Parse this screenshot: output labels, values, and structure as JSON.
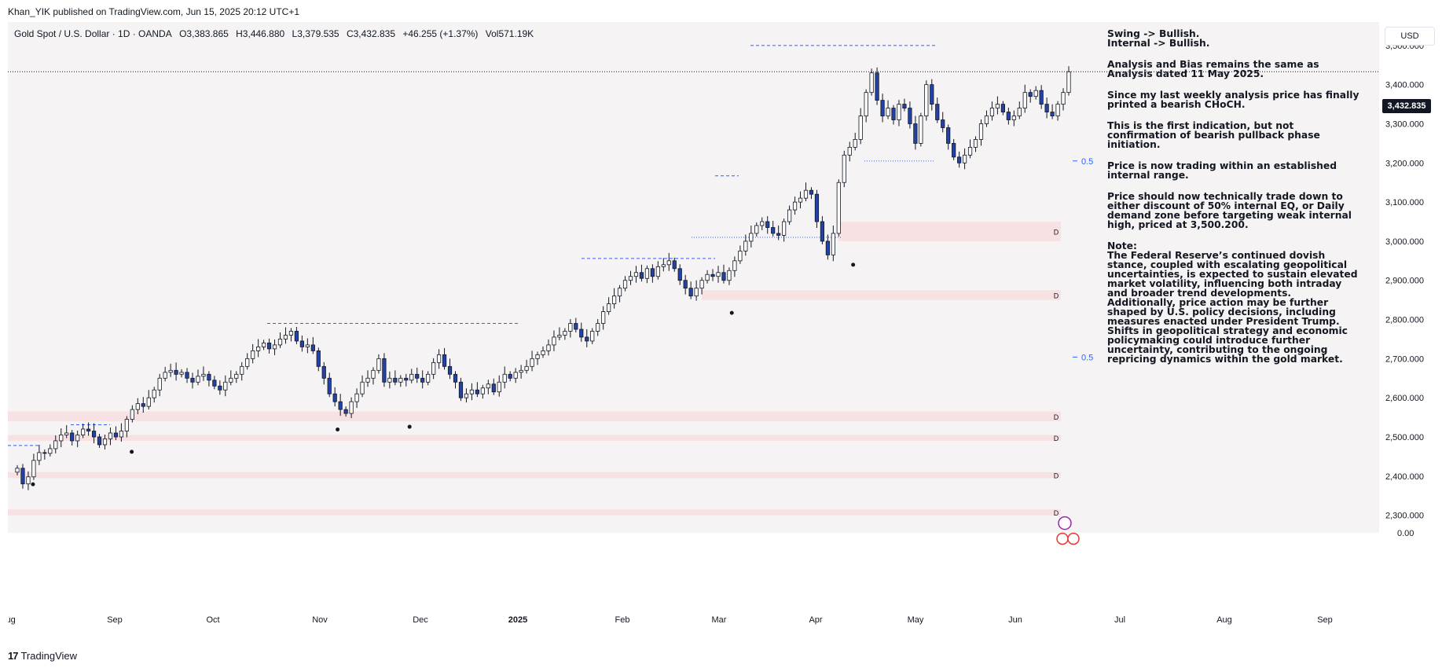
{
  "header": {
    "publisher": "Khan_YIK published on TradingView.com, Jun 15, 2025 20:12 UTC+1"
  },
  "symbol": {
    "name": "Gold Spot / U.S. Dollar · 1D · OANDA",
    "open": "O3,383.865",
    "high": "H3,446.880",
    "low": "L3,379.535",
    "close": "C3,432.835",
    "change": "+46.255 (+1.37%)",
    "volume": "Vol571.19K"
  },
  "currency_button": "USD",
  "last_price": "3,432.835",
  "colors": {
    "up_candle": "#ffffff",
    "down_candle": "#2342a8",
    "zone": "#f8e1e2",
    "bos_line": "#2962ff",
    "plot_bg": "#f5f3f3"
  },
  "notes": [
    "Swing -> Bullish.\nInternal -> Bullish.",
    "Analysis and Bias remains the same as Analysis dated 11 May 2025.",
    "Since my last weekly analysis price has finally printed a bearish CHoCH.",
    "This is the first indication, but not confirmation of bearish pullback phase initiation.",
    "Price is now trading within an established internal range.",
    "Price should now technically trade down to either discount of 50% internal EQ, or Daily demand zone before targeting weak internal high, priced at 3,500.200.",
    "Note:\nThe Federal Reserve’s continued dovish stance, coupled with escalating geopolitical uncertainties, is expected to sustain elevated market volatility, influencing both intraday and broader trend developments.\nAdditionally, price action may be further shaped by U.S. policy decisions, including measures enacted under President Trump. Shifts in geopolitical strategy and economic policymaking could introduce further uncertainty, contributing to the ongoing repricing dynamics within the gold market."
  ],
  "footer": {
    "brand": "TradingView"
  },
  "chart_data": {
    "type": "candlestick",
    "y_ticks": [
      3500,
      3400,
      3300,
      3200,
      3100,
      3000,
      2900,
      2800,
      2700,
      2600,
      2500,
      2400,
      2300
    ],
    "y_tick_labels": [
      "3,500.000",
      "3,400.000",
      "3,300.000",
      "3,200.000",
      "3,100.000",
      "3,000.000",
      "2,900.000",
      "2,800.000",
      "2,700.000",
      "2,600.000",
      "2,500.000",
      "2,400.000",
      "2,300.000"
    ],
    "y_extra_label": "0.00",
    "ylim": [
      2255,
      3560
    ],
    "x_labels": [
      "Aug",
      "Sep",
      "Oct",
      "Nov",
      "Dec",
      "2025",
      "Feb",
      "Mar",
      "Apr",
      "May",
      "Jun",
      "Jul",
      "Aug",
      "Sep"
    ],
    "x_label_dates": [
      "2024-08-01",
      "2024-09-01",
      "2024-10-01",
      "2024-11-01",
      "2024-12-01",
      "2025-01-01",
      "2025-02-01",
      "2025-03-01",
      "2025-04-01",
      "2025-05-01",
      "2025-06-01",
      "2025-07-01",
      "2025-08-01",
      "2025-09-01"
    ],
    "closes": [
      2420,
      2380,
      2398,
      2440,
      2460,
      2458,
      2470,
      2490,
      2505,
      2510,
      2490,
      2505,
      2520,
      2515,
      2500,
      2480,
      2495,
      2510,
      2500,
      2515,
      2545,
      2570,
      2585,
      2578,
      2600,
      2620,
      2650,
      2665,
      2670,
      2660,
      2665,
      2650,
      2640,
      2655,
      2660,
      2645,
      2630,
      2620,
      2640,
      2650,
      2660,
      2680,
      2700,
      2720,
      2730,
      2740,
      2725,
      2735,
      2750,
      2760,
      2770,
      2745,
      2730,
      2735,
      2720,
      2680,
      2650,
      2610,
      2590,
      2570,
      2560,
      2590,
      2610,
      2640,
      2650,
      2670,
      2700,
      2640,
      2650,
      2640,
      2650,
      2645,
      2660,
      2650,
      2640,
      2660,
      2690,
      2710,
      2680,
      2660,
      2640,
      2600,
      2610,
      2620,
      2610,
      2625,
      2635,
      2615,
      2640,
      2660,
      2650,
      2665,
      2670,
      2680,
      2700,
      2710,
      2720,
      2735,
      2755,
      2760,
      2770,
      2790,
      2775,
      2755,
      2745,
      2770,
      2790,
      2820,
      2840,
      2860,
      2880,
      2900,
      2910,
      2920,
      2905,
      2930,
      2910,
      2935,
      2940,
      2950,
      2930,
      2900,
      2880,
      2860,
      2880,
      2900,
      2915,
      2910,
      2920,
      2900,
      2925,
      2950,
      2975,
      3000,
      3020,
      3040,
      3050,
      3035,
      3020,
      3015,
      3050,
      3080,
      3100,
      3110,
      3130,
      3120,
      3050,
      3000,
      2965,
      3020,
      3150,
      3220,
      3240,
      3260,
      3320,
      3380,
      3430,
      3360,
      3320,
      3340,
      3310,
      3350,
      3340,
      3300,
      3250,
      3320,
      3400,
      3350,
      3310,
      3290,
      3250,
      3215,
      3200,
      3220,
      3240,
      3260,
      3300,
      3320,
      3340,
      3350,
      3330,
      3310,
      3320,
      3340,
      3380,
      3370,
      3385,
      3350,
      3330,
      3320,
      3350,
      3380,
      3433
    ],
    "bos_levels": [
      2478,
      2531,
      2790,
      2956,
      3167,
      3500
    ],
    "choch_level": 3205,
    "eq_levels": [
      3205,
      2704
    ],
    "demand_zones": [
      [
        3000,
        3050
      ],
      [
        2850,
        2875
      ],
      [
        2540,
        2565
      ],
      [
        2490,
        2505
      ],
      [
        2395,
        2410
      ],
      [
        2300,
        2315
      ]
    ],
    "zone_label": "D",
    "eq_label": "0.5"
  }
}
